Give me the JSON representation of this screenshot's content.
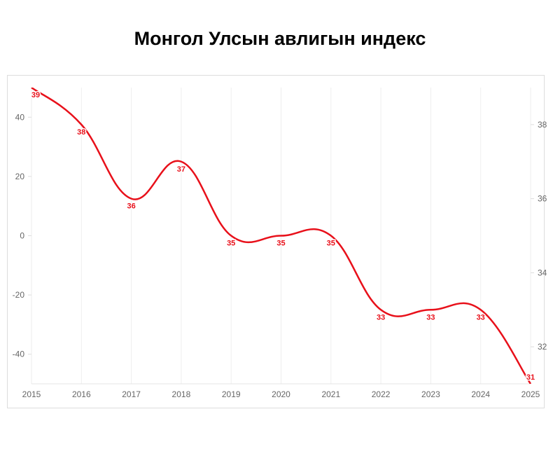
{
  "chart_data": {
    "type": "line",
    "title": "Монгол Улсын авлигын индекс",
    "x": [
      "2015",
      "2016",
      "2017",
      "2018",
      "2019",
      "2020",
      "2021",
      "2022",
      "2023",
      "2024",
      "2025"
    ],
    "series": [
      {
        "values": [
          39,
          38,
          36,
          37,
          35,
          35,
          35,
          33,
          33,
          33,
          31
        ],
        "color": "#e8101a",
        "axis": "right",
        "smooth": true,
        "data_labels": true
      }
    ],
    "y_left": {
      "range": [
        -50,
        50
      ],
      "ticks": [
        40,
        20,
        0,
        -20,
        -40
      ]
    },
    "y_right": {
      "range": [
        31,
        39
      ],
      "ticks": [
        38,
        36,
        34,
        32
      ]
    },
    "grid": {
      "vertical": true,
      "horizontal": false
    },
    "xlabel": "",
    "ylabel": ""
  }
}
